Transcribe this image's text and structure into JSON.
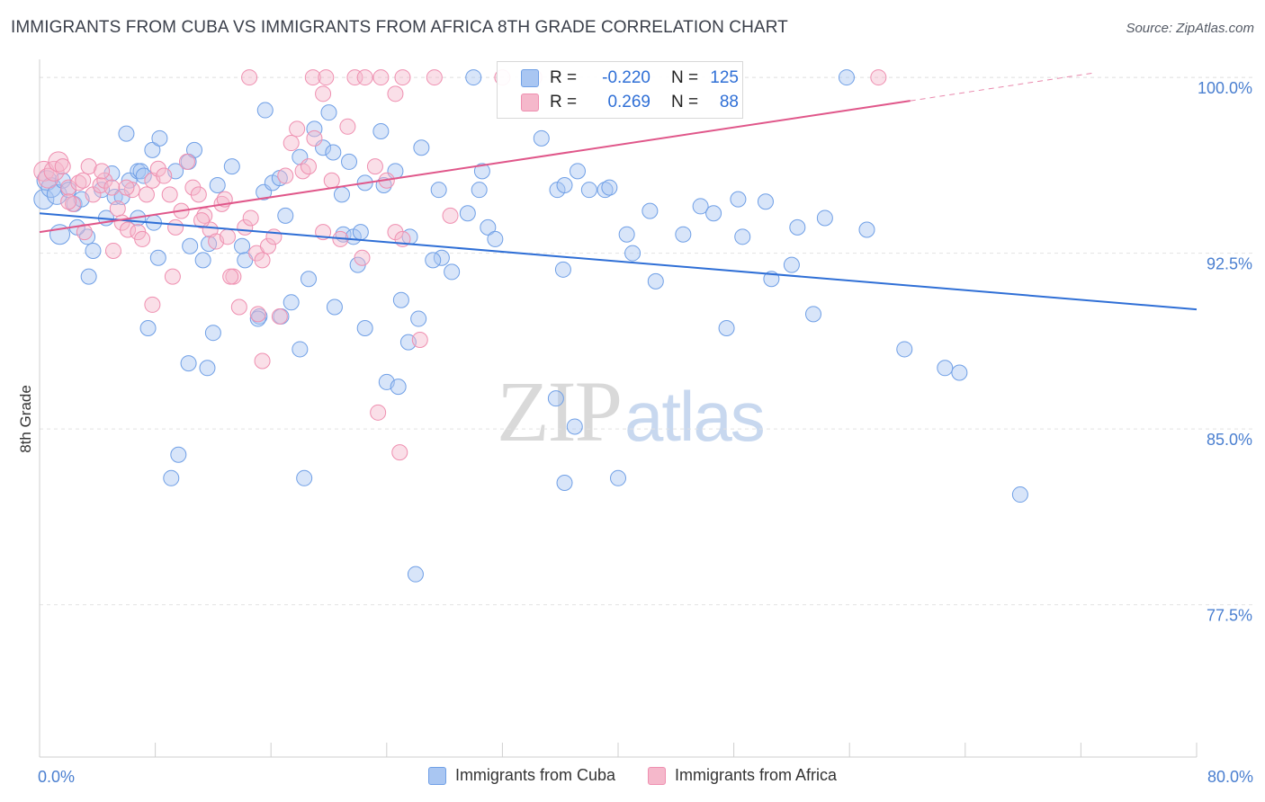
{
  "title": "IMMIGRANTS FROM CUBA VS IMMIGRANTS FROM AFRICA 8TH GRADE CORRELATION CHART",
  "source": "Source: ZipAtlas.com",
  "watermark": {
    "zip": "ZIP",
    "atlas": "atlas"
  },
  "stats": {
    "r_label": "R =",
    "n_label": "N =",
    "rows": [
      {
        "r": "-0.220",
        "n": "125",
        "color": "#a9c6f2"
      },
      {
        "r": "0.269",
        "n": "88",
        "color": "#f5b8cb"
      }
    ]
  },
  "legend": [
    {
      "label": "Immigrants from Cuba",
      "color": "#a9c6f2"
    },
    {
      "label": "Immigrants from Africa",
      "color": "#f5b8cb"
    }
  ],
  "chart_data": {
    "type": "scatter",
    "ylabel": "8th Grade",
    "xlim": [
      0,
      80
    ],
    "ylim": [
      71,
      101
    ],
    "x_tick_labels": [
      "0.0%",
      "80.0%"
    ],
    "y_ticks": [
      100.0,
      92.5,
      85.0,
      77.5
    ],
    "y_tick_labels": [
      "100.0%",
      "92.5%",
      "85.0%",
      "77.5%"
    ],
    "grid": true,
    "series": [
      {
        "name": "Immigrants from Cuba",
        "color": "#6f9fe6",
        "fill": "#a9c6f2",
        "trend": {
          "x0": 0,
          "y0": 94.2,
          "x1": 80,
          "y1": 90.1,
          "color": "#2f6fd6"
        },
        "points": [
          [
            0.3,
            94.8
          ],
          [
            0.5,
            95.6
          ],
          [
            0.8,
            95.3
          ],
          [
            1.2,
            95.0
          ],
          [
            1.6,
            95.6
          ],
          [
            2.0,
            95.2
          ],
          [
            2.4,
            94.6
          ],
          [
            2.9,
            94.8
          ],
          [
            3.3,
            93.2
          ],
          [
            4.3,
            95.2
          ],
          [
            1.4,
            93.3
          ],
          [
            3.7,
            92.6
          ],
          [
            3.4,
            91.5
          ],
          [
            5.0,
            95.9
          ],
          [
            5.2,
            94.9
          ],
          [
            6.2,
            95.6
          ],
          [
            6.8,
            96.0
          ],
          [
            7.0,
            96.0
          ],
          [
            7.2,
            95.8
          ],
          [
            7.8,
            96.9
          ],
          [
            8.3,
            97.4
          ],
          [
            9.4,
            96.0
          ],
          [
            10.3,
            96.4
          ],
          [
            10.7,
            96.9
          ],
          [
            6.0,
            97.6
          ],
          [
            6.8,
            94.0
          ],
          [
            7.9,
            93.8
          ],
          [
            7.5,
            89.3
          ],
          [
            10.4,
            92.8
          ],
          [
            11.3,
            92.2
          ],
          [
            11.7,
            92.9
          ],
          [
            12.3,
            95.4
          ],
          [
            13.3,
            96.2
          ],
          [
            14.0,
            92.8
          ],
          [
            14.2,
            92.2
          ],
          [
            15.5,
            95.1
          ],
          [
            15.2,
            89.8
          ],
          [
            12.0,
            89.1
          ],
          [
            10.3,
            87.8
          ],
          [
            11.6,
            87.6
          ],
          [
            9.6,
            83.9
          ],
          [
            9.1,
            82.9
          ],
          [
            15.1,
            89.7
          ],
          [
            16.1,
            95.5
          ],
          [
            16.6,
            95.7
          ],
          [
            15.6,
            98.6
          ],
          [
            17.0,
            94.1
          ],
          [
            17.4,
            90.4
          ],
          [
            16.7,
            89.8
          ],
          [
            18.0,
            88.4
          ],
          [
            18.6,
            91.4
          ],
          [
            18.0,
            96.6
          ],
          [
            19.0,
            97.8
          ],
          [
            19.6,
            97.0
          ],
          [
            20.3,
            96.8
          ],
          [
            20.4,
            90.2
          ],
          [
            21.0,
            93.3
          ],
          [
            21.4,
            96.4
          ],
          [
            21.7,
            93.2
          ],
          [
            22.0,
            92.0
          ],
          [
            22.5,
            95.5
          ],
          [
            23.8,
            95.4
          ],
          [
            24.6,
            96.0
          ],
          [
            23.6,
            97.7
          ],
          [
            25.0,
            90.5
          ],
          [
            25.6,
            93.2
          ],
          [
            26.2,
            89.7
          ],
          [
            25.5,
            88.7
          ],
          [
            24.0,
            87.0
          ],
          [
            24.8,
            86.8
          ],
          [
            22.5,
            89.3
          ],
          [
            20.0,
            98.5
          ],
          [
            26.4,
            97.0
          ],
          [
            27.6,
            95.2
          ],
          [
            27.8,
            92.3
          ],
          [
            28.5,
            91.7
          ],
          [
            29.6,
            94.2
          ],
          [
            30.6,
            96.0
          ],
          [
            30.4,
            95.2
          ],
          [
            31.0,
            93.6
          ],
          [
            31.5,
            93.1
          ],
          [
            30.0,
            100.0
          ],
          [
            34.7,
            97.4
          ],
          [
            35.8,
            95.2
          ],
          [
            36.3,
            95.4
          ],
          [
            37.2,
            96.0
          ],
          [
            36.2,
            91.8
          ],
          [
            38.0,
            95.2
          ],
          [
            39.1,
            95.2
          ],
          [
            39.4,
            95.3
          ],
          [
            40.6,
            93.3
          ],
          [
            41.0,
            92.5
          ],
          [
            42.2,
            94.3
          ],
          [
            42.6,
            91.3
          ],
          [
            44.5,
            93.3
          ],
          [
            45.7,
            94.5
          ],
          [
            46.6,
            94.2
          ],
          [
            47.5,
            89.3
          ],
          [
            48.3,
            94.8
          ],
          [
            48.6,
            93.2
          ],
          [
            50.2,
            94.7
          ],
          [
            50.6,
            91.4
          ],
          [
            52.4,
            93.6
          ],
          [
            52.0,
            92.0
          ],
          [
            53.5,
            89.9
          ],
          [
            54.3,
            94.0
          ],
          [
            57.2,
            93.5
          ],
          [
            59.8,
            88.4
          ],
          [
            62.6,
            87.6
          ],
          [
            63.6,
            87.4
          ],
          [
            67.8,
            82.2
          ],
          [
            55.8,
            100.0
          ],
          [
            35.7,
            86.3
          ],
          [
            37.0,
            85.1
          ],
          [
            36.3,
            82.7
          ],
          [
            40.0,
            82.9
          ],
          [
            26.0,
            78.8
          ],
          [
            18.3,
            82.9
          ],
          [
            20.9,
            95.0
          ],
          [
            22.2,
            93.4
          ],
          [
            27.2,
            92.2
          ],
          [
            8.2,
            92.3
          ],
          [
            4.6,
            94.0
          ],
          [
            5.7,
            94.9
          ],
          [
            2.6,
            93.6
          ]
        ]
      },
      {
        "name": "Immigrants from Africa",
        "color": "#ef8fb0",
        "fill": "#f5b8cb",
        "trend": {
          "x0": 0,
          "y0": 93.4,
          "x1": 60.2,
          "y1": 99.0,
          "x2": 73,
          "y2": 100.2,
          "color": "#e0578a"
        },
        "points": [
          [
            0.3,
            96.0
          ],
          [
            0.6,
            95.7
          ],
          [
            1.0,
            96.0
          ],
          [
            1.3,
            96.4
          ],
          [
            1.6,
            96.2
          ],
          [
            2.0,
            95.3
          ],
          [
            2.3,
            94.6
          ],
          [
            2.7,
            95.5
          ],
          [
            3.0,
            95.6
          ],
          [
            3.4,
            96.2
          ],
          [
            3.7,
            95.0
          ],
          [
            4.2,
            95.4
          ],
          [
            4.5,
            95.6
          ],
          [
            5.0,
            95.3
          ],
          [
            5.4,
            94.4
          ],
          [
            5.7,
            93.8
          ],
          [
            6.1,
            93.5
          ],
          [
            6.4,
            95.2
          ],
          [
            6.8,
            93.4
          ],
          [
            7.1,
            93.1
          ],
          [
            7.4,
            95.0
          ],
          [
            7.8,
            95.6
          ],
          [
            8.2,
            96.1
          ],
          [
            8.6,
            95.8
          ],
          [
            9.0,
            95.0
          ],
          [
            9.4,
            93.6
          ],
          [
            9.8,
            94.3
          ],
          [
            10.2,
            96.4
          ],
          [
            10.6,
            95.3
          ],
          [
            11.0,
            95.0
          ],
          [
            11.4,
            94.1
          ],
          [
            11.8,
            93.5
          ],
          [
            12.2,
            93.0
          ],
          [
            12.6,
            94.6
          ],
          [
            13.0,
            93.2
          ],
          [
            13.4,
            91.5
          ],
          [
            13.8,
            90.2
          ],
          [
            14.2,
            93.6
          ],
          [
            14.6,
            94.0
          ],
          [
            15.0,
            92.5
          ],
          [
            15.4,
            92.2
          ],
          [
            15.8,
            92.8
          ],
          [
            16.2,
            93.2
          ],
          [
            16.6,
            89.8
          ],
          [
            17.0,
            95.8
          ],
          [
            17.4,
            97.2
          ],
          [
            17.8,
            97.8
          ],
          [
            18.2,
            96.0
          ],
          [
            18.6,
            96.2
          ],
          [
            19.0,
            97.4
          ],
          [
            19.6,
            93.4
          ],
          [
            20.2,
            95.6
          ],
          [
            20.8,
            93.1
          ],
          [
            21.3,
            97.9
          ],
          [
            22.3,
            92.3
          ],
          [
            23.2,
            96.2
          ],
          [
            24.0,
            95.6
          ],
          [
            24.6,
            93.4
          ],
          [
            25.1,
            93.1
          ],
          [
            26.3,
            88.8
          ],
          [
            28.4,
            94.1
          ],
          [
            7.8,
            90.3
          ],
          [
            9.2,
            91.5
          ],
          [
            13.2,
            91.5
          ],
          [
            15.1,
            89.9
          ],
          [
            15.4,
            87.9
          ],
          [
            23.4,
            85.7
          ],
          [
            24.9,
            84.0
          ],
          [
            14.5,
            100.0
          ],
          [
            18.9,
            100.0
          ],
          [
            19.8,
            100.0
          ],
          [
            21.8,
            100.0
          ],
          [
            22.5,
            100.0
          ],
          [
            23.6,
            100.0
          ],
          [
            25.1,
            100.0
          ],
          [
            27.3,
            100.0
          ],
          [
            32.0,
            100.0
          ],
          [
            34.2,
            100.0
          ],
          [
            58.0,
            100.0
          ],
          [
            19.6,
            99.3
          ],
          [
            24.6,
            99.3
          ],
          [
            12.8,
            94.8
          ],
          [
            5.1,
            92.6
          ],
          [
            2.0,
            94.7
          ],
          [
            3.1,
            93.4
          ],
          [
            4.3,
            96.0
          ],
          [
            6.0,
            95.3
          ],
          [
            11.2,
            93.9
          ]
        ]
      }
    ]
  }
}
